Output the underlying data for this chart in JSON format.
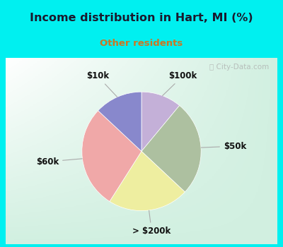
{
  "title": "Income distribution in Hart, MI (%)",
  "subtitle": "Other residents",
  "title_color": "#1a1a2e",
  "subtitle_color": "#cc7722",
  "title_bg_color": "#00f0f0",
  "labels": [
    "$100k",
    "$50k",
    "> $200k",
    "$60k",
    "$10k"
  ],
  "values": [
    11,
    26,
    22,
    28,
    13
  ],
  "colors": [
    "#c4b0d8",
    "#adc0a0",
    "#eeeea0",
    "#f0a8a8",
    "#8888cc"
  ],
  "label_fontsize": 8.5,
  "watermark": "City-Data.com",
  "startangle": 90,
  "chart_border_color": "#00f0f0"
}
